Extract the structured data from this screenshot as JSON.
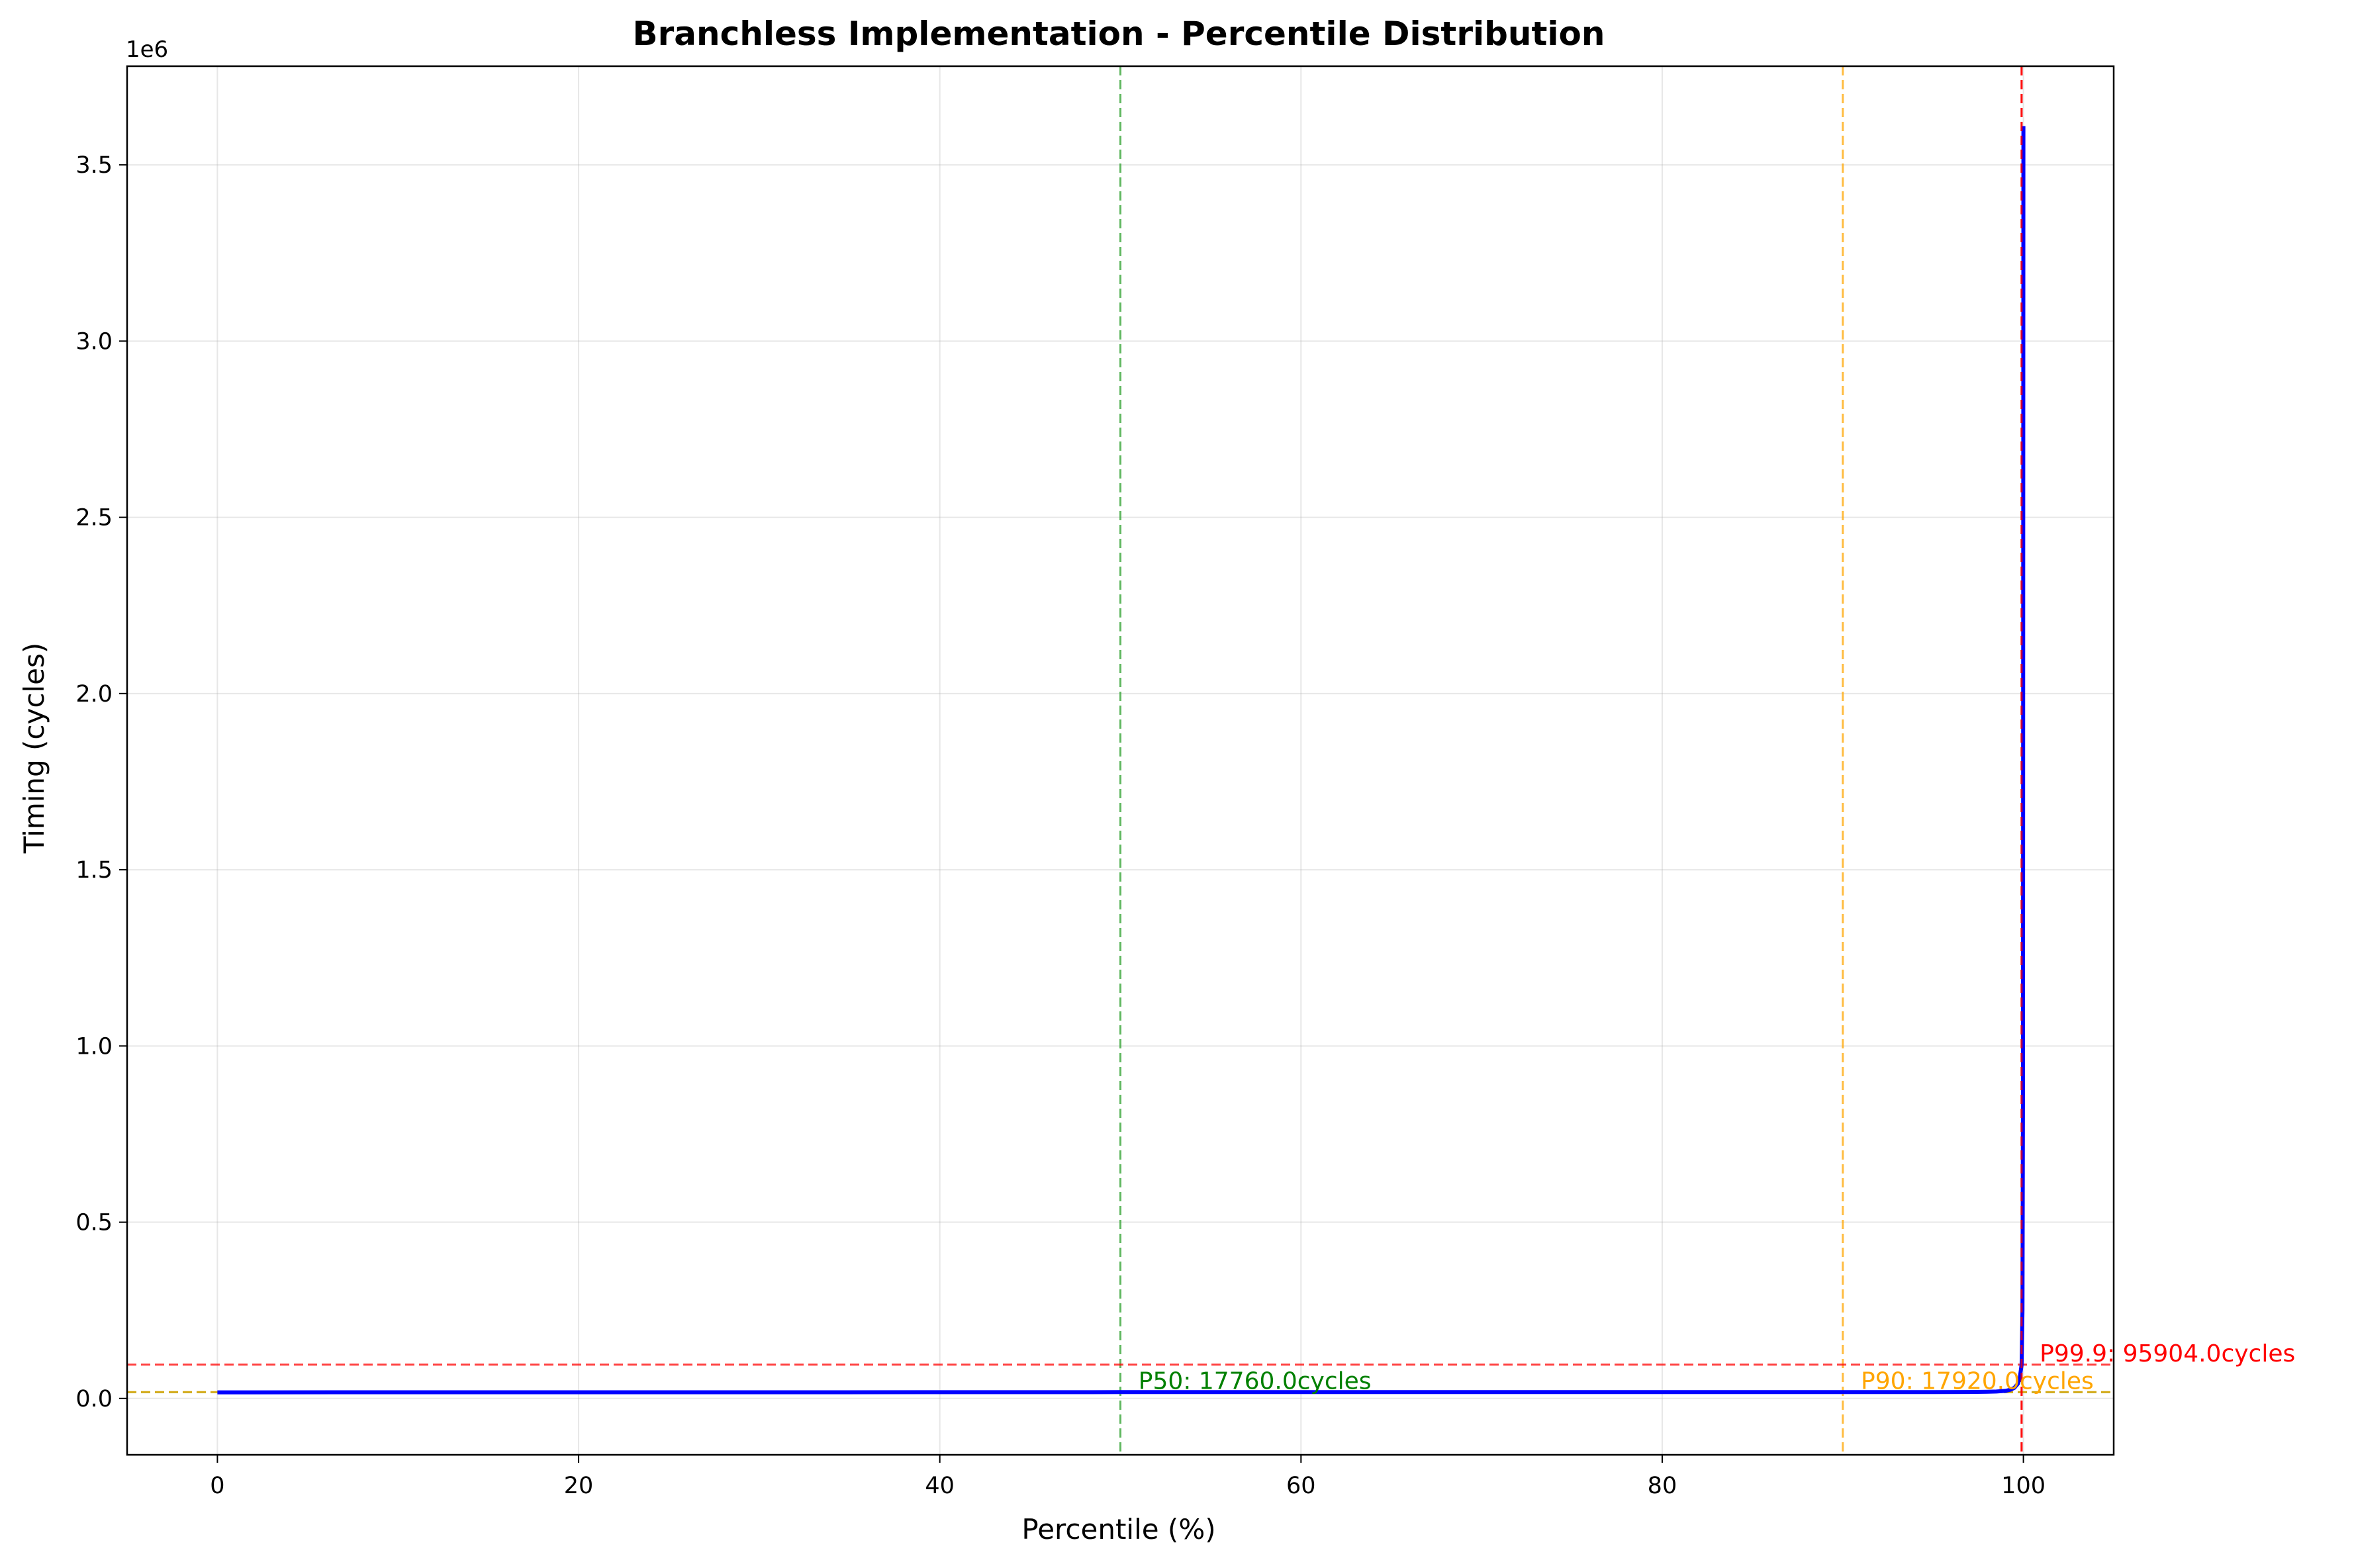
{
  "chart_data": {
    "type": "line",
    "title": "Branchless Implementation - Percentile Distribution",
    "xlabel": "Percentile (%)",
    "ylabel": "Timing (cycles)",
    "y_offset_label": "1e6",
    "xlim": [
      -5,
      105
    ],
    "ylim": [
      -160000,
      3780000
    ],
    "x_ticks": [
      0,
      20,
      40,
      60,
      80,
      100
    ],
    "x_tick_labels": [
      "0",
      "20",
      "40",
      "60",
      "80",
      "100"
    ],
    "y_ticks": [
      0,
      500000,
      1000000,
      1500000,
      2000000,
      2500000,
      3000000,
      3500000
    ],
    "y_tick_labels": [
      "0.0",
      "0.5",
      "1.0",
      "1.5",
      "2.0",
      "2.5",
      "3.0",
      "3.5"
    ],
    "grid": true,
    "series": [
      {
        "color": "#0000ff",
        "x": [
          0,
          10,
          20,
          30,
          40,
          50,
          60,
          70,
          80,
          90,
          95,
          97,
          98,
          98.5,
          99,
          99.3,
          99.5,
          99.7,
          99.8,
          99.9,
          99.95,
          99.98,
          100
        ],
        "y": [
          17300,
          17400,
          17480,
          17560,
          17660,
          17760,
          17800,
          17840,
          17880,
          17920,
          18050,
          18300,
          18700,
          19500,
          21500,
          25000,
          30000,
          42000,
          58000,
          95904,
          250000,
          900000,
          3610000
        ]
      }
    ],
    "reference_lines": [
      {
        "orientation": "vertical",
        "x": 50,
        "color": "#2ca02c"
      },
      {
        "orientation": "horizontal",
        "y": 17760,
        "color": "#2ca02c"
      },
      {
        "orientation": "vertical",
        "x": 90,
        "color": "#ffa500"
      },
      {
        "orientation": "horizontal",
        "y": 17920,
        "color": "#ffa500"
      },
      {
        "orientation": "vertical",
        "x": 99.9,
        "color": "#ff0000"
      },
      {
        "orientation": "horizontal",
        "y": 95904,
        "color": "#ff0000"
      }
    ],
    "annotations": [
      {
        "text": "P50: 17760.0cycles",
        "x": 51,
        "y": 27000,
        "color": "#008000"
      },
      {
        "text": "P90: 17920.0cycles",
        "x": 91,
        "y": 27000,
        "color": "#ffa500"
      },
      {
        "text": "P99.9: 95904.0cycles",
        "x": 100.9,
        "y": 105000,
        "color": "#ff0000"
      }
    ]
  }
}
